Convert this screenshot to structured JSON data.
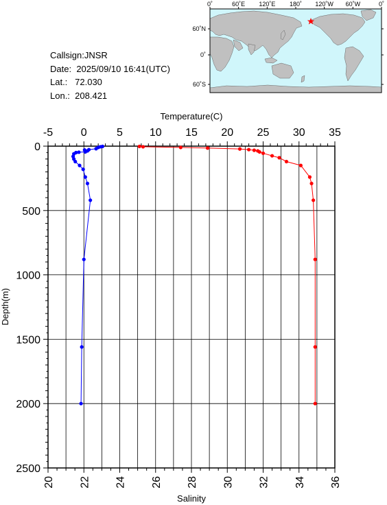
{
  "station": {
    "callsign_label": "Callsign:",
    "callsign": "JNSR",
    "date_label": "Date:",
    "date": "2025/09/10 16:41(UTC)",
    "lat_label": "Lat.:",
    "lat": "72.030",
    "lon_label": "Lon.:",
    "lon": "208.421"
  },
  "map": {
    "top_ticks": [
      "0˚",
      "60˚E",
      "120˚E",
      "180˚",
      "120˚W",
      "60˚W",
      "0˚"
    ],
    "left_ticks": [
      "60˚N",
      "0˚",
      "60˚S"
    ],
    "ocean_color": "#d0f6fb",
    "land_color": "#c0c0c0",
    "marker": "star",
    "marker_color": "#ff0000"
  },
  "chart_data": {
    "type": "line",
    "xlabel_top": "Temperature(C)",
    "xlabel_bottom": "Salinity",
    "ylabel": "Depth(m)",
    "temperature_ticks": [
      "-5",
      "0",
      "5",
      "10",
      "15",
      "20",
      "25",
      "30",
      "35"
    ],
    "salinity_ticks": [
      "20",
      "22",
      "24",
      "26",
      "28",
      "30",
      "32",
      "34",
      "36"
    ],
    "depth_ticks": [
      "0",
      "500",
      "1000",
      "1500",
      "2000",
      "2500"
    ],
    "temperature_range": [
      -5,
      35
    ],
    "salinity_range": [
      20,
      36
    ],
    "depth_range": [
      0,
      2500
    ],
    "grid": true,
    "series": [
      {
        "variable": "temperature",
        "color": "#0000ff",
        "points": [
          {
            "x": 2.6,
            "y": 2
          },
          {
            "x": 2.3,
            "y": 5
          },
          {
            "x": 2.0,
            "y": 10
          },
          {
            "x": 1.7,
            "y": 20
          },
          {
            "x": 0.7,
            "y": 27
          },
          {
            "x": 0.1,
            "y": 30
          },
          {
            "x": 0.5,
            "y": 37
          },
          {
            "x": 0.2,
            "y": 45
          },
          {
            "x": -0.7,
            "y": 47
          },
          {
            "x": -1.1,
            "y": 50
          },
          {
            "x": -1.4,
            "y": 60
          },
          {
            "x": -1.5,
            "y": 80
          },
          {
            "x": -1.4,
            "y": 100
          },
          {
            "x": -1.2,
            "y": 120
          },
          {
            "x": -0.6,
            "y": 150
          },
          {
            "x": -0.1,
            "y": 180
          },
          {
            "x": 0.2,
            "y": 240
          },
          {
            "x": 0.5,
            "y": 290
          },
          {
            "x": 0.9,
            "y": 420
          },
          {
            "x": 0.0,
            "y": 880
          },
          {
            "x": -0.3,
            "y": 1560
          },
          {
            "x": -0.4,
            "y": 2000
          }
        ]
      },
      {
        "variable": "salinity",
        "color": "#ff0000",
        "points": [
          {
            "x": 25.1,
            "y": 2
          },
          {
            "x": 25.3,
            "y": 5
          },
          {
            "x": 27.4,
            "y": 10
          },
          {
            "x": 28.9,
            "y": 15
          },
          {
            "x": 30.7,
            "y": 22
          },
          {
            "x": 31.2,
            "y": 27
          },
          {
            "x": 31.5,
            "y": 32
          },
          {
            "x": 31.7,
            "y": 37
          },
          {
            "x": 31.8,
            "y": 45
          },
          {
            "x": 32.0,
            "y": 55
          },
          {
            "x": 32.5,
            "y": 75
          },
          {
            "x": 32.9,
            "y": 90
          },
          {
            "x": 33.3,
            "y": 120
          },
          {
            "x": 34.1,
            "y": 150
          },
          {
            "x": 34.6,
            "y": 240
          },
          {
            "x": 34.7,
            "y": 290
          },
          {
            "x": 34.8,
            "y": 420
          },
          {
            "x": 34.9,
            "y": 880
          },
          {
            "x": 34.9,
            "y": 1560
          },
          {
            "x": 34.9,
            "y": 2000
          }
        ]
      }
    ]
  }
}
